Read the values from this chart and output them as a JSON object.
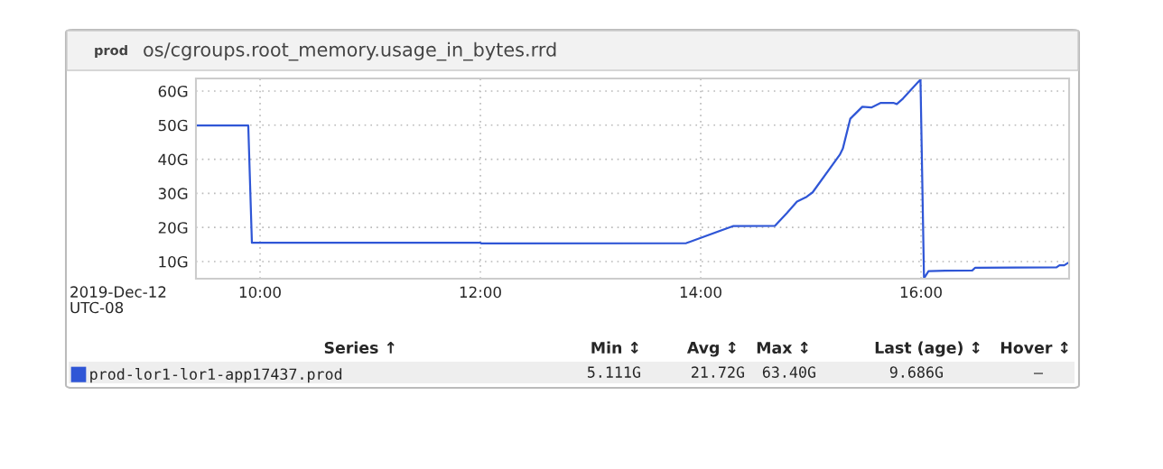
{
  "chart_data": {
    "type": "line",
    "title": "prod",
    "subtitle": "os/cgroups.root_memory.usage_in_bytes.rrd",
    "xlabel": "2019-Dec-12\nUTC-08",
    "xlim": [
      9.418,
      17.344
    ],
    "ylim": [
      4.97,
      63.7
    ],
    "xticks": [
      {
        "value": 10,
        "label": "10:00"
      },
      {
        "value": 12,
        "label": "12:00"
      },
      {
        "value": 14,
        "label": "14:00"
      },
      {
        "value": 16,
        "label": "16:00"
      }
    ],
    "yticks": [
      {
        "value": 10,
        "label": "10G"
      },
      {
        "value": 20,
        "label": "20G"
      },
      {
        "value": 30,
        "label": "30G"
      },
      {
        "value": 40,
        "label": "40G"
      },
      {
        "value": 50,
        "label": "50G"
      },
      {
        "value": 60,
        "label": "60G"
      }
    ],
    "grid": true,
    "legend": "bottom",
    "line_style": "solid",
    "marker": "none",
    "series": [
      {
        "name": "prod-lor1-lor1-app17437.prod",
        "color": "#2f56d6",
        "x": [
          9.418,
          9.893,
          9.926,
          12.0,
          12.01,
          13.869,
          14.293,
          14.675,
          14.784,
          14.874,
          14.962,
          15.016,
          15.262,
          15.29,
          15.358,
          15.467,
          15.549,
          15.631,
          15.754,
          15.78,
          15.836,
          15.995,
          16.027,
          16.068,
          16.219,
          16.465,
          16.492,
          17.23,
          17.257,
          17.3,
          17.339
        ],
        "values": [
          49.9,
          49.9,
          15.5,
          15.5,
          15.3,
          15.4,
          20.4,
          20.5,
          24.3,
          27.6,
          29.0,
          30.3,
          41.3,
          43.1,
          51.9,
          55.4,
          55.2,
          56.5,
          56.5,
          56.2,
          57.8,
          63.4,
          5.1,
          7.2,
          7.3,
          7.4,
          8.2,
          8.3,
          8.9,
          8.9,
          9.7
        ]
      }
    ],
    "annotations": [
      "Series ↑",
      "Min ↕",
      "Avg ↕",
      "Max ↕",
      "Last (age) ↕",
      "Hover ↕",
      "5.111G",
      "21.72G",
      "63.40G",
      "9.686G",
      "—"
    ]
  }
}
